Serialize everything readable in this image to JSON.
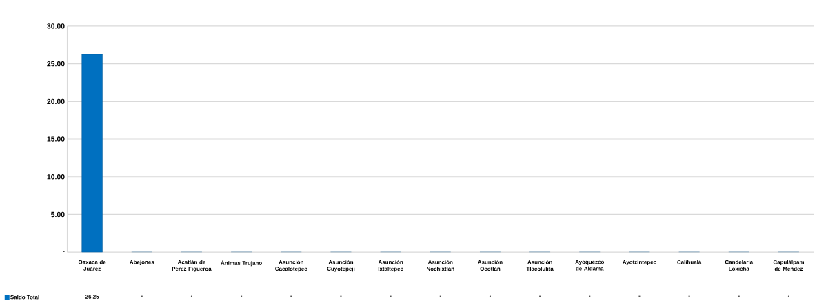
{
  "chart_data": {
    "type": "bar",
    "categories": [
      "Oaxaca de Juárez",
      "Abejones",
      "Acatlán de Pérez Figueroa",
      "Ánimas Trujano",
      "Asunción Cacalotepec",
      "Asunción Cuyotepeji",
      "Asunción Ixtaltepec",
      "Asunción Nochixtlán",
      "Asunción Ocotlán",
      "Asunción Tlacolulita",
      "Ayoquezco de Aldama",
      "Ayotzintepec",
      "Calihualá",
      "Candelaria Loxicha",
      "Capulálpam de Méndez"
    ],
    "series": [
      {
        "name": "Saldo Total",
        "color": "#0070c0",
        "values": [
          26.25,
          0,
          0,
          0,
          0,
          0,
          0,
          0,
          0,
          0,
          0,
          0,
          0,
          0,
          0
        ],
        "value_labels": [
          "26.25",
          "-",
          "-",
          "-",
          "-",
          "-",
          "-",
          "-",
          "-",
          "-",
          "-",
          "-",
          "-",
          "-",
          "-"
        ]
      }
    ],
    "ylim": [
      0,
      30
    ],
    "yticks": [
      {
        "value": 0,
        "label": "-"
      },
      {
        "value": 5,
        "label": "5.00"
      },
      {
        "value": 10,
        "label": "10.00"
      },
      {
        "value": 15,
        "label": "15.00"
      },
      {
        "value": 20,
        "label": "20.00"
      },
      {
        "value": 25,
        "label": "25.00"
      },
      {
        "value": 30,
        "label": "30.00"
      }
    ],
    "grid": "y",
    "legend": "bottom left"
  }
}
